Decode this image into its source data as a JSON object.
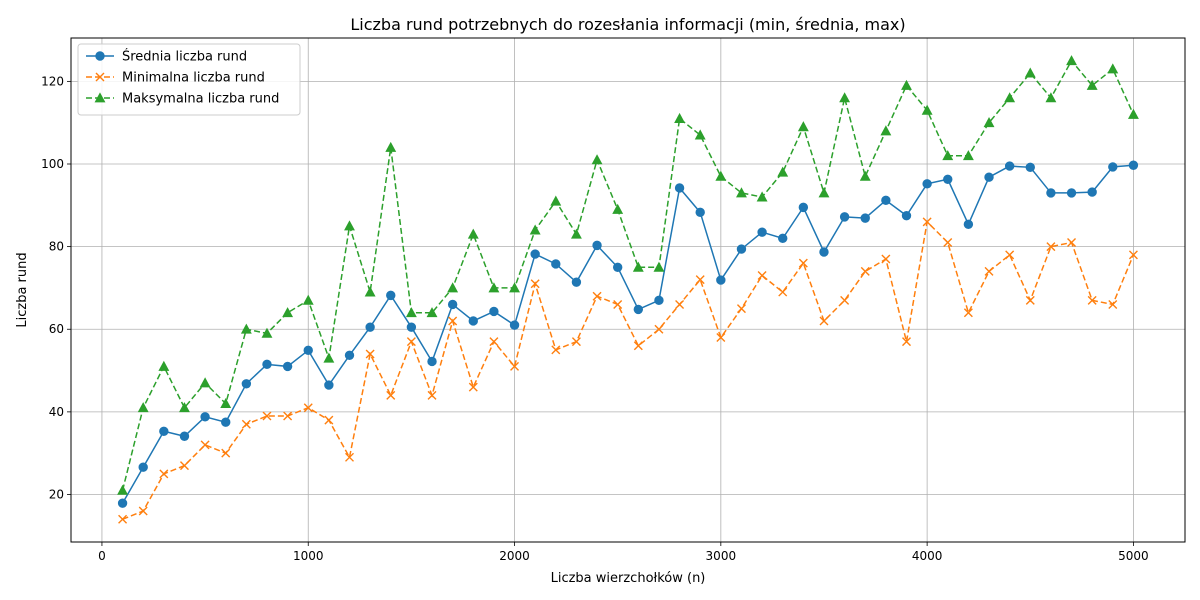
{
  "chart_data": {
    "type": "line",
    "title": "Liczba rund potrzebnych do rozesłania informacji (min, średnia, max)",
    "xlabel": "Liczba wierzchołków (n)",
    "ylabel": "Liczba rund",
    "xlim": [
      -150,
      5250
    ],
    "ylim": [
      8.5,
      130.5
    ],
    "xticks": [
      0,
      1000,
      2000,
      3000,
      4000,
      5000
    ],
    "yticks": [
      20,
      40,
      60,
      80,
      100,
      120
    ],
    "grid": true,
    "legend_position": "top-left",
    "x": [
      100,
      200,
      300,
      400,
      500,
      600,
      700,
      800,
      900,
      1000,
      1100,
      1200,
      1300,
      1400,
      1500,
      1600,
      1700,
      1800,
      1900,
      2000,
      2100,
      2200,
      2300,
      2400,
      2500,
      2600,
      2700,
      2800,
      2900,
      3000,
      3100,
      3200,
      3300,
      3400,
      3500,
      3600,
      3700,
      3800,
      3900,
      4000,
      4100,
      4200,
      4300,
      4400,
      4500,
      4600,
      4700,
      4800,
      4900,
      5000
    ],
    "series": [
      {
        "name": "Średnia liczba rund",
        "color": "#1f77b4",
        "style": "solid",
        "marker": "circle",
        "values": [
          17.9,
          26.6,
          35.3,
          34.1,
          38.8,
          37.5,
          46.8,
          51.5,
          51.0,
          54.9,
          46.5,
          53.7,
          60.5,
          68.2,
          60.5,
          52.2,
          66.0,
          62.0,
          64.3,
          61.0,
          78.2,
          75.8,
          71.4,
          80.3,
          75.0,
          64.8,
          67.0,
          94.2,
          88.3,
          71.9,
          79.4,
          83.5,
          82.0,
          89.5,
          78.7,
          87.2,
          86.9,
          91.2,
          87.5,
          95.2,
          96.3,
          85.4,
          96.8,
          99.5,
          99.2,
          93.0,
          93.0,
          93.2,
          99.3,
          99.7
        ]
      },
      {
        "name": "Minimalna liczba rund",
        "color": "#ff7f0e",
        "style": "dashed",
        "marker": "x",
        "values": [
          14,
          16,
          25,
          27,
          32,
          30,
          37,
          39,
          39,
          41,
          38,
          29,
          54,
          44,
          57,
          44,
          62,
          46,
          57,
          51,
          71,
          55,
          57,
          68,
          66,
          56,
          60,
          66,
          72,
          58,
          65,
          73,
          69,
          76,
          62,
          67,
          74,
          77,
          57,
          86,
          81,
          64,
          74,
          78,
          67,
          80,
          81,
          67,
          66,
          78
        ]
      },
      {
        "name": "Maksymalna liczba rund",
        "color": "#2ca02c",
        "style": "dashed",
        "marker": "triangle",
        "values": [
          21,
          41,
          51,
          41,
          47,
          42,
          60,
          59,
          64,
          67,
          53,
          85,
          69,
          104,
          64,
          64,
          70,
          83,
          70,
          70,
          84,
          91,
          83,
          101,
          89,
          75,
          75,
          111,
          107,
          97,
          93,
          92,
          98,
          109,
          93,
          116,
          97,
          108,
          119,
          113,
          102,
          102,
          110,
          116,
          122,
          116,
          125,
          119,
          123,
          112
        ]
      }
    ]
  }
}
